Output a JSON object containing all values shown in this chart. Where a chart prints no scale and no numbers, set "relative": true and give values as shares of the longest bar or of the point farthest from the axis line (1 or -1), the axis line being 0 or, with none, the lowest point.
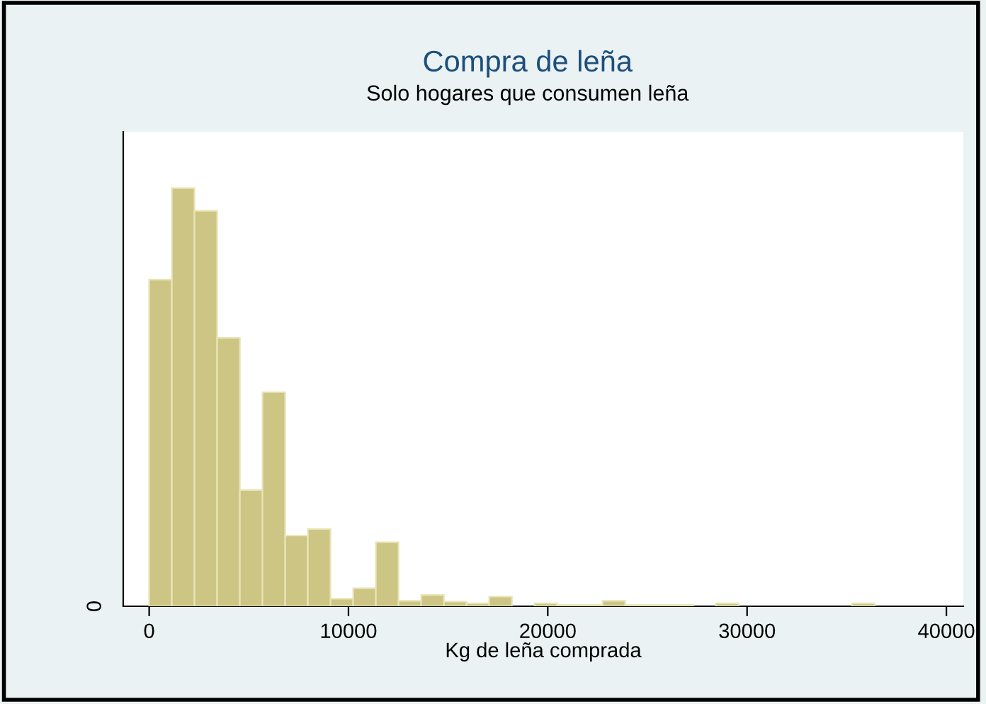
{
  "chart_data": {
    "type": "bar",
    "title": "Compra de leña",
    "subtitle": "Solo hogares que consumen leña",
    "xlabel": "Kg de leña comprada",
    "x": [
      568.75,
      1706.25,
      2843.75,
      3981.25,
      5118.75,
      6256.25,
      7393.75,
      8531.25,
      9668.75,
      10806.25,
      11943.75,
      13081.25,
      14218.75,
      15356.25,
      16493.75,
      17631.25,
      18768.75,
      19906.25,
      21043.75,
      22181.25,
      23318.75,
      24456.25,
      25593.75,
      26731.25,
      27868.75,
      29006.25,
      30143.75,
      31281.25,
      32418.75,
      33556.25,
      34693.75,
      35831.25
    ],
    "values": [
      0.781,
      1,
      0.946,
      0.642,
      0.278,
      0.512,
      0.169,
      0.185,
      0.018,
      0.043,
      0.153,
      0.013,
      0.027,
      0.011,
      0.007,
      0.023,
      0,
      0.007,
      0.003,
      0.003,
      0.013,
      0.003,
      0.003,
      0.003,
      0,
      0.007,
      0,
      0,
      0,
      0,
      0,
      0.007
    ],
    "relative": true,
    "color": "#cdc583",
    "xlim": [
      -1300,
      40850
    ],
    "xticks": [
      0,
      10000,
      20000,
      30000,
      40000
    ],
    "annotations": [
      "0"
    ]
  }
}
